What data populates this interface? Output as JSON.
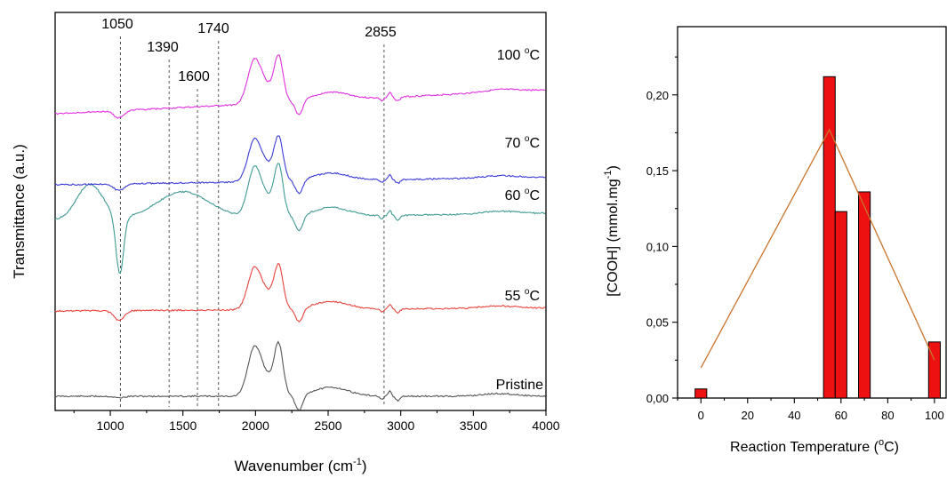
{
  "chart_data": [
    {
      "type": "line",
      "xlabel": "Wavenumber (cm",
      "xlabel_sup": "-1",
      "xlabel_close": ")",
      "ylabel": "Transmittance (a.u.)",
      "xlim": [
        620,
        4000
      ],
      "x_ticks": [
        "1000",
        "1500",
        "2000",
        "2500",
        "3000",
        "3500",
        "4000"
      ],
      "x_tick_values": [
        1000,
        1500,
        2000,
        2500,
        3000,
        3500,
        4000
      ],
      "y_ticks": "none",
      "grid": false,
      "peak_markers": [
        {
          "label": "1050",
          "x": 1070
        },
        {
          "label": "1390",
          "x": 1405
        },
        {
          "label": "1600",
          "x": 1600
        },
        {
          "label": "1740",
          "x": 1745
        },
        {
          "label": "2855",
          "x": 2885
        }
      ],
      "series": [
        {
          "name": "Pristine",
          "color": "#555555",
          "offset": 0
        },
        {
          "name": "55 °C",
          "label_main": "55 ",
          "label_sup": "o",
          "label_end": "C",
          "color": "#e8433c",
          "offset": 1
        },
        {
          "name": "60 °C",
          "label_main": "60 ",
          "label_sup": "o",
          "label_end": "C",
          "color": "#3f9a93",
          "offset": 2
        },
        {
          "name": "70 °C",
          "label_main": "70 ",
          "label_sup": "o",
          "label_end": "C",
          "color": "#3b3bd8",
          "offset": 3
        },
        {
          "name": "100 °C",
          "label_main": "100 ",
          "label_sup": "o",
          "label_end": "C",
          "color": "#e030e0",
          "offset": 4
        }
      ],
      "pristine_label": "Pristine"
    },
    {
      "type": "bar",
      "xlabel": "Reaction Temperature (",
      "xlabel_sup": "o",
      "xlabel_end": "C)",
      "ylabel": "[COOH] (mmol.mg",
      "ylabel_sup": "-1",
      "ylabel_close": ")",
      "xlim": [
        -10,
        105
      ],
      "ylim": [
        0,
        0.245
      ],
      "x_ticks": [
        "0",
        "20",
        "40",
        "60",
        "80",
        "100"
      ],
      "x_tick_values": [
        0,
        20,
        40,
        60,
        80,
        100
      ],
      "y_ticks": [
        "0,00",
        "0,05",
        "0,10",
        "0,15",
        "0,20"
      ],
      "y_tick_values": [
        0,
        0.05,
        0.1,
        0.15,
        0.2
      ],
      "bar_color": "#ee1111",
      "fit_color": "#c8742c",
      "bars": [
        {
          "x": 0,
          "value": 0.006
        },
        {
          "x": 55,
          "value": 0.212
        },
        {
          "x": 60,
          "value": 0.123
        },
        {
          "x": 70,
          "value": 0.136
        },
        {
          "x": 100,
          "value": 0.037
        }
      ],
      "fit_line": [
        {
          "x": 0,
          "y": 0.02
        },
        {
          "x": 55,
          "y": 0.177
        },
        {
          "x": 100,
          "y": 0.025
        }
      ]
    }
  ]
}
